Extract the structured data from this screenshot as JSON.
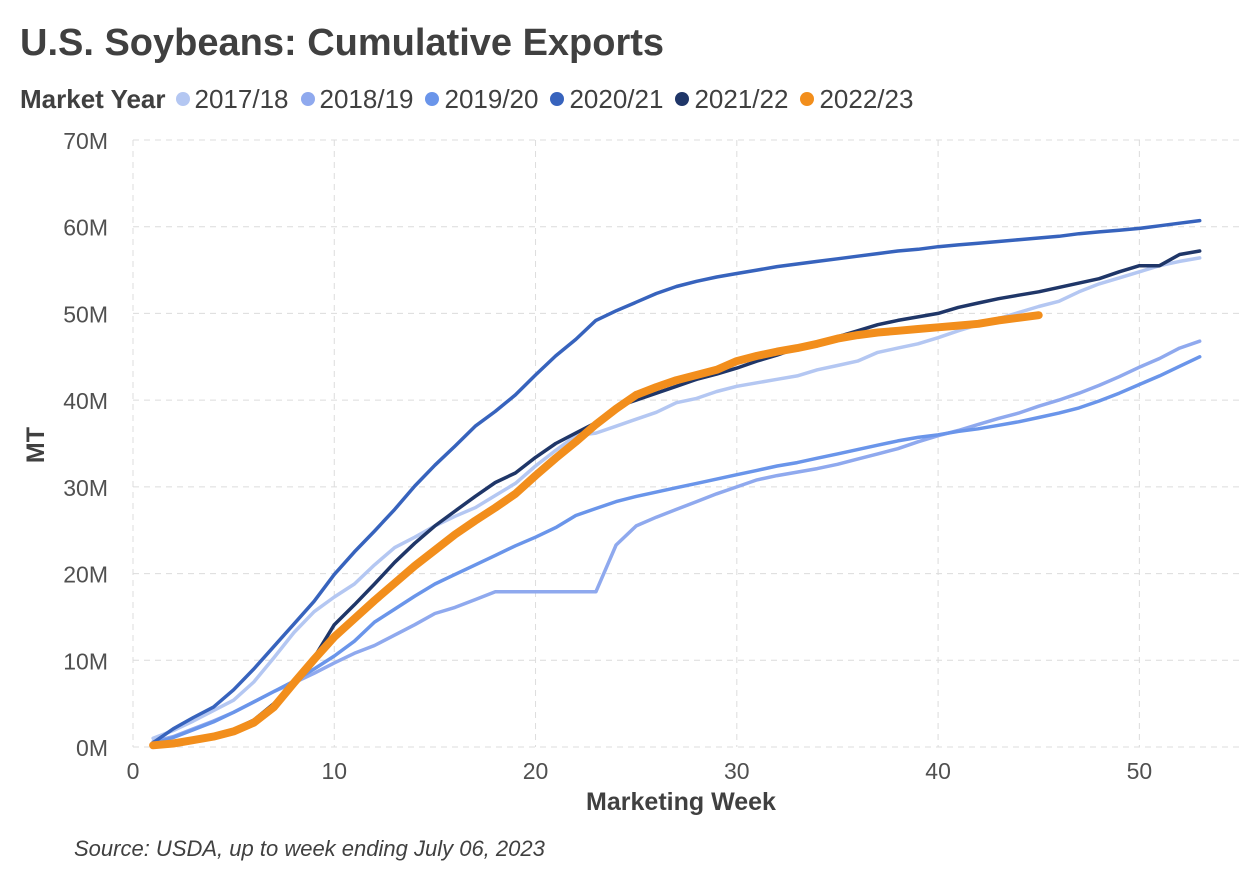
{
  "chart_data": {
    "type": "line",
    "title": "U.S. Soybeans: Cumulative Exports",
    "legend_title": "Market Year",
    "legend_position": "top-left",
    "xlabel": "Marketing Week",
    "ylabel": "MT",
    "xlim": [
      0,
      55
    ],
    "ylim": [
      0,
      70000000
    ],
    "x_ticks": [
      0,
      10,
      20,
      30,
      40,
      50
    ],
    "x_tick_labels": [
      "0",
      "10",
      "20",
      "30",
      "40",
      "50"
    ],
    "y_ticks": [
      0,
      10000000,
      20000000,
      30000000,
      40000000,
      50000000,
      60000000,
      70000000
    ],
    "y_tick_labels": [
      "0M",
      "10M",
      "20M",
      "30M",
      "40M",
      "50M",
      "60M",
      "70M"
    ],
    "grid": true,
    "source": "Source: USDA, up to week ending July 06, 2023",
    "series": [
      {
        "name": "2017/18",
        "color": "#b4c7f2",
        "points": [
          [
            1,
            1.0
          ],
          [
            2,
            1.9
          ],
          [
            3,
            3.0
          ],
          [
            4,
            4.2
          ],
          [
            5,
            5.4
          ],
          [
            6,
            7.5
          ],
          [
            7,
            10.3
          ],
          [
            8,
            13.2
          ],
          [
            9,
            15.6
          ],
          [
            10,
            17.3
          ],
          [
            11,
            18.8
          ],
          [
            12,
            21.0
          ],
          [
            13,
            23.0
          ],
          [
            14,
            24.2
          ],
          [
            15,
            25.5
          ],
          [
            16,
            26.6
          ],
          [
            17,
            27.6
          ],
          [
            18,
            29.0
          ],
          [
            19,
            30.4
          ],
          [
            20,
            32.4
          ],
          [
            21,
            34.2
          ],
          [
            22,
            35.9
          ],
          [
            23,
            36.2
          ],
          [
            24,
            37.0
          ],
          [
            25,
            37.8
          ],
          [
            26,
            38.6
          ],
          [
            27,
            39.7
          ],
          [
            28,
            40.2
          ],
          [
            29,
            41.0
          ],
          [
            30,
            41.6
          ],
          [
            31,
            42.0
          ],
          [
            32,
            42.4
          ],
          [
            33,
            42.8
          ],
          [
            34,
            43.5
          ],
          [
            35,
            44.0
          ],
          [
            36,
            44.5
          ],
          [
            37,
            45.5
          ],
          [
            38,
            46.0
          ],
          [
            39,
            46.5
          ],
          [
            40,
            47.2
          ],
          [
            41,
            48.0
          ],
          [
            42,
            48.7
          ],
          [
            43,
            49.4
          ],
          [
            44,
            50.1
          ],
          [
            45,
            50.8
          ],
          [
            46,
            51.4
          ],
          [
            47,
            52.5
          ],
          [
            48,
            53.4
          ],
          [
            49,
            54.1
          ],
          [
            50,
            54.8
          ],
          [
            51,
            55.5
          ],
          [
            52,
            56.0
          ],
          [
            53,
            56.4
          ]
        ]
      },
      {
        "name": "2018/19",
        "color": "#8fa9ee",
        "points": [
          [
            1,
            0.6
          ],
          [
            2,
            1.2
          ],
          [
            3,
            2.1
          ],
          [
            4,
            3.0
          ],
          [
            5,
            4.0
          ],
          [
            6,
            5.2
          ],
          [
            7,
            6.4
          ],
          [
            8,
            7.4
          ],
          [
            9,
            8.5
          ],
          [
            10,
            9.7
          ],
          [
            11,
            10.8
          ],
          [
            12,
            11.7
          ],
          [
            13,
            12.9
          ],
          [
            14,
            14.1
          ],
          [
            15,
            15.4
          ],
          [
            16,
            16.1
          ],
          [
            17,
            17.0
          ],
          [
            18,
            17.9
          ],
          [
            19,
            17.9
          ],
          [
            20,
            17.9
          ],
          [
            21,
            17.9
          ],
          [
            22,
            17.9
          ],
          [
            23,
            17.9
          ],
          [
            24,
            23.3
          ],
          [
            25,
            25.5
          ],
          [
            26,
            26.5
          ],
          [
            27,
            27.4
          ],
          [
            28,
            28.3
          ],
          [
            29,
            29.2
          ],
          [
            30,
            30.0
          ],
          [
            31,
            30.8
          ],
          [
            32,
            31.3
          ],
          [
            33,
            31.7
          ],
          [
            34,
            32.1
          ],
          [
            35,
            32.6
          ],
          [
            36,
            33.2
          ],
          [
            37,
            33.8
          ],
          [
            38,
            34.4
          ],
          [
            39,
            35.2
          ],
          [
            40,
            35.9
          ],
          [
            41,
            36.5
          ],
          [
            42,
            37.2
          ],
          [
            43,
            37.9
          ],
          [
            44,
            38.5
          ],
          [
            45,
            39.3
          ],
          [
            46,
            40.0
          ],
          [
            47,
            40.8
          ],
          [
            48,
            41.7
          ],
          [
            49,
            42.7
          ],
          [
            50,
            43.8
          ],
          [
            51,
            44.8
          ],
          [
            52,
            46.0
          ],
          [
            53,
            46.8
          ]
        ]
      },
      {
        "name": "2019/20",
        "color": "#6a95ea",
        "points": [
          [
            1,
            0.4
          ],
          [
            2,
            1.1
          ],
          [
            3,
            2.0
          ],
          [
            4,
            2.9
          ],
          [
            5,
            4.0
          ],
          [
            6,
            5.2
          ],
          [
            7,
            6.4
          ],
          [
            8,
            7.6
          ],
          [
            9,
            9.0
          ],
          [
            10,
            10.5
          ],
          [
            11,
            12.2
          ],
          [
            12,
            14.4
          ],
          [
            13,
            15.9
          ],
          [
            14,
            17.4
          ],
          [
            15,
            18.8
          ],
          [
            16,
            19.9
          ],
          [
            17,
            21.0
          ],
          [
            18,
            22.1
          ],
          [
            19,
            23.2
          ],
          [
            20,
            24.2
          ],
          [
            21,
            25.3
          ],
          [
            22,
            26.7
          ],
          [
            23,
            27.5
          ],
          [
            24,
            28.3
          ],
          [
            25,
            28.9
          ],
          [
            26,
            29.4
          ],
          [
            27,
            29.9
          ],
          [
            28,
            30.4
          ],
          [
            29,
            30.9
          ],
          [
            30,
            31.4
          ],
          [
            31,
            31.9
          ],
          [
            32,
            32.4
          ],
          [
            33,
            32.8
          ],
          [
            34,
            33.3
          ],
          [
            35,
            33.8
          ],
          [
            36,
            34.3
          ],
          [
            37,
            34.8
          ],
          [
            38,
            35.3
          ],
          [
            39,
            35.7
          ],
          [
            40,
            36.0
          ],
          [
            41,
            36.4
          ],
          [
            42,
            36.7
          ],
          [
            43,
            37.1
          ],
          [
            44,
            37.5
          ],
          [
            45,
            38.0
          ],
          [
            46,
            38.5
          ],
          [
            47,
            39.1
          ],
          [
            48,
            39.9
          ],
          [
            49,
            40.8
          ],
          [
            50,
            41.8
          ],
          [
            51,
            42.8
          ],
          [
            52,
            43.9
          ],
          [
            53,
            45.0
          ]
        ]
      },
      {
        "name": "2020/21",
        "color": "#3763bd",
        "points": [
          [
            1,
            0.5
          ],
          [
            2,
            2.1
          ],
          [
            3,
            3.4
          ],
          [
            4,
            4.6
          ],
          [
            5,
            6.6
          ],
          [
            6,
            9.0
          ],
          [
            7,
            11.6
          ],
          [
            8,
            14.2
          ],
          [
            9,
            16.8
          ],
          [
            10,
            19.9
          ],
          [
            11,
            22.5
          ],
          [
            12,
            24.9
          ],
          [
            13,
            27.4
          ],
          [
            14,
            30.1
          ],
          [
            15,
            32.5
          ],
          [
            16,
            34.7
          ],
          [
            17,
            37.0
          ],
          [
            18,
            38.7
          ],
          [
            19,
            40.6
          ],
          [
            20,
            42.9
          ],
          [
            21,
            45.1
          ],
          [
            22,
            47.0
          ],
          [
            23,
            49.2
          ],
          [
            24,
            50.3
          ],
          [
            25,
            51.3
          ],
          [
            26,
            52.3
          ],
          [
            27,
            53.1
          ],
          [
            28,
            53.7
          ],
          [
            29,
            54.2
          ],
          [
            30,
            54.6
          ],
          [
            31,
            55.0
          ],
          [
            32,
            55.4
          ],
          [
            33,
            55.7
          ],
          [
            34,
            56.0
          ],
          [
            35,
            56.3
          ],
          [
            36,
            56.6
          ],
          [
            37,
            56.9
          ],
          [
            38,
            57.2
          ],
          [
            39,
            57.4
          ],
          [
            40,
            57.7
          ],
          [
            41,
            57.9
          ],
          [
            42,
            58.1
          ],
          [
            43,
            58.3
          ],
          [
            44,
            58.5
          ],
          [
            45,
            58.7
          ],
          [
            46,
            58.9
          ],
          [
            47,
            59.2
          ],
          [
            48,
            59.4
          ],
          [
            49,
            59.6
          ],
          [
            50,
            59.8
          ],
          [
            51,
            60.1
          ],
          [
            52,
            60.4
          ],
          [
            53,
            60.7
          ]
        ]
      },
      {
        "name": "2021/22",
        "color": "#1f3668",
        "points": [
          [
            1,
            0.2
          ],
          [
            2,
            0.6
          ],
          [
            3,
            0.9
          ],
          [
            4,
            1.3
          ],
          [
            5,
            2.0
          ],
          [
            6,
            3.1
          ],
          [
            7,
            5.0
          ],
          [
            8,
            7.5
          ],
          [
            9,
            10.3
          ],
          [
            10,
            14.1
          ],
          [
            11,
            16.4
          ],
          [
            12,
            18.8
          ],
          [
            13,
            21.3
          ],
          [
            14,
            23.5
          ],
          [
            15,
            25.5
          ],
          [
            16,
            27.2
          ],
          [
            17,
            28.9
          ],
          [
            18,
            30.5
          ],
          [
            19,
            31.6
          ],
          [
            20,
            33.4
          ],
          [
            21,
            35.0
          ],
          [
            22,
            36.2
          ],
          [
            23,
            37.4
          ],
          [
            24,
            39.2
          ],
          [
            25,
            40.0
          ],
          [
            26,
            40.8
          ],
          [
            27,
            41.6
          ],
          [
            28,
            42.4
          ],
          [
            29,
            43.0
          ],
          [
            30,
            43.7
          ],
          [
            31,
            44.5
          ],
          [
            32,
            45.2
          ],
          [
            33,
            46.0
          ],
          [
            34,
            46.7
          ],
          [
            35,
            47.3
          ],
          [
            36,
            48.0
          ],
          [
            37,
            48.7
          ],
          [
            38,
            49.2
          ],
          [
            39,
            49.6
          ],
          [
            40,
            50.0
          ],
          [
            41,
            50.7
          ],
          [
            42,
            51.2
          ],
          [
            43,
            51.7
          ],
          [
            44,
            52.1
          ],
          [
            45,
            52.5
          ],
          [
            46,
            53.0
          ],
          [
            47,
            53.5
          ],
          [
            48,
            54.0
          ],
          [
            49,
            54.8
          ],
          [
            50,
            55.5
          ],
          [
            51,
            55.5
          ],
          [
            52,
            56.8
          ],
          [
            53,
            57.2
          ]
        ]
      },
      {
        "name": "2022/23",
        "color": "#f28e1c",
        "points": [
          [
            1,
            0.2
          ],
          [
            2,
            0.4
          ],
          [
            3,
            0.8
          ],
          [
            4,
            1.2
          ],
          [
            5,
            1.8
          ],
          [
            6,
            2.8
          ],
          [
            7,
            4.6
          ],
          [
            8,
            7.4
          ],
          [
            9,
            10.1
          ],
          [
            10,
            12.7
          ],
          [
            11,
            14.8
          ],
          [
            12,
            16.9
          ],
          [
            13,
            18.9
          ],
          [
            14,
            20.9
          ],
          [
            15,
            22.7
          ],
          [
            16,
            24.5
          ],
          [
            17,
            26.1
          ],
          [
            18,
            27.6
          ],
          [
            19,
            29.2
          ],
          [
            20,
            31.3
          ],
          [
            21,
            33.3
          ],
          [
            22,
            35.2
          ],
          [
            23,
            37.2
          ],
          [
            24,
            39.0
          ],
          [
            25,
            40.6
          ],
          [
            26,
            41.5
          ],
          [
            27,
            42.3
          ],
          [
            28,
            42.9
          ],
          [
            29,
            43.5
          ],
          [
            30,
            44.5
          ],
          [
            31,
            45.1
          ],
          [
            32,
            45.6
          ],
          [
            33,
            46.0
          ],
          [
            34,
            46.5
          ],
          [
            35,
            47.1
          ],
          [
            36,
            47.5
          ],
          [
            37,
            47.8
          ],
          [
            38,
            48.0
          ],
          [
            39,
            48.2
          ],
          [
            40,
            48.4
          ],
          [
            41,
            48.6
          ],
          [
            42,
            48.8
          ],
          [
            43,
            49.2
          ],
          [
            44,
            49.5
          ],
          [
            45,
            49.8
          ]
        ]
      }
    ]
  }
}
